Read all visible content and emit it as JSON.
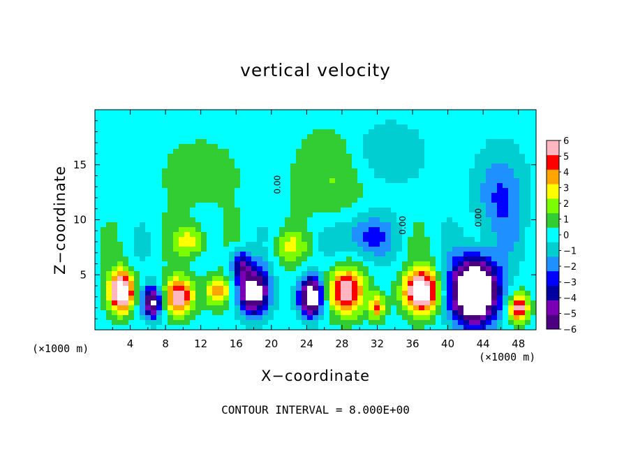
{
  "chart_data": {
    "type": "heatmap",
    "title": "vertical velocity",
    "xlabel": "X−coordinate",
    "ylabel": "Z−coordinate",
    "x_unit": "(×1000 m)",
    "y_unit": "(×1000 m)",
    "contour_interval_text": "CONTOUR INTERVAL = 8.000E+00",
    "xlim": [
      0,
      50
    ],
    "ylim": [
      0,
      20
    ],
    "xticks": [
      4,
      8,
      12,
      16,
      20,
      24,
      28,
      32,
      36,
      40,
      44,
      48
    ],
    "xtick_labels": [
      "4",
      "8",
      "12",
      "16",
      "20",
      "24",
      "28",
      "32",
      "36",
      "40",
      "44",
      "48"
    ],
    "yticks": [
      5,
      10,
      15
    ],
    "ytick_labels": [
      "5",
      "10",
      "15"
    ],
    "colorbar": {
      "range": [
        -6,
        6
      ],
      "tick_labels": [
        "6",
        "5",
        "4",
        "3",
        "2",
        "1",
        "0",
        "−1",
        "−2",
        "−3",
        "−4",
        "−5",
        "−6"
      ],
      "colors": [
        "#4b0082",
        "#7b00b5",
        "#0000a0",
        "#0000ff",
        "#1e90ff",
        "#00ced1",
        "#00ffff",
        "#32cd32",
        "#7cfc00",
        "#ffff00",
        "#ffa500",
        "#ff0000",
        "#ffb6c1"
      ]
    },
    "contour_labels": [
      "0.00",
      "0.00",
      "0.00"
    ],
    "features": [
      {
        "x": 3.0,
        "z": 3.5,
        "sx": 1.0,
        "sz": 1.3,
        "w": 8
      },
      {
        "x": 9.5,
        "z": 3.0,
        "sx": 1.2,
        "sz": 1.2,
        "w": 6
      },
      {
        "x": 14.0,
        "z": 3.5,
        "sx": 1.0,
        "sz": 1.0,
        "w": 4
      },
      {
        "x": 6.5,
        "z": 2.5,
        "sx": 0.8,
        "sz": 1.0,
        "w": -7
      },
      {
        "x": 11.0,
        "z": 8.0,
        "sx": 1.2,
        "sz": 1.0,
        "w": 3
      },
      {
        "x": 18.0,
        "z": 3.5,
        "sx": 1.2,
        "sz": 1.5,
        "w": -8
      },
      {
        "x": 16.5,
        "z": 6.0,
        "sx": 0.8,
        "sz": 1.0,
        "w": -4
      },
      {
        "x": 24.5,
        "z": 3.0,
        "sx": 0.9,
        "sz": 1.2,
        "w": -9
      },
      {
        "x": 28.5,
        "z": 3.5,
        "sx": 1.5,
        "sz": 1.5,
        "w": 6
      },
      {
        "x": 32.0,
        "z": 2.0,
        "sx": 0.6,
        "sz": 0.8,
        "w": 4
      },
      {
        "x": 30.5,
        "z": 8.5,
        "sx": 2.0,
        "sz": 1.5,
        "w": -3
      },
      {
        "x": 37.0,
        "z": 3.5,
        "sx": 1.4,
        "sz": 1.4,
        "w": 8
      },
      {
        "x": 43.0,
        "z": 3.5,
        "sx": 1.8,
        "sz": 2.0,
        "w": -12
      },
      {
        "x": 46.0,
        "z": 12.0,
        "sx": 2.0,
        "sz": 3.0,
        "w": -2.5
      },
      {
        "x": 48.0,
        "z": 2.0,
        "sx": 0.8,
        "sz": 0.9,
        "w": 6
      },
      {
        "x": 27.0,
        "z": 14.0,
        "sx": 3.0,
        "sz": 3.0,
        "w": 1.5
      },
      {
        "x": 12.0,
        "z": 14.0,
        "sx": 4.0,
        "sz": 3.0,
        "w": 0.8
      },
      {
        "x": 33.0,
        "z": 16.0,
        "sx": 3.0,
        "sz": 2.0,
        "w": -1.5
      },
      {
        "x": 22.0,
        "z": 7.5,
        "sx": 1.5,
        "sz": 1.0,
        "w": 2
      }
    ]
  }
}
